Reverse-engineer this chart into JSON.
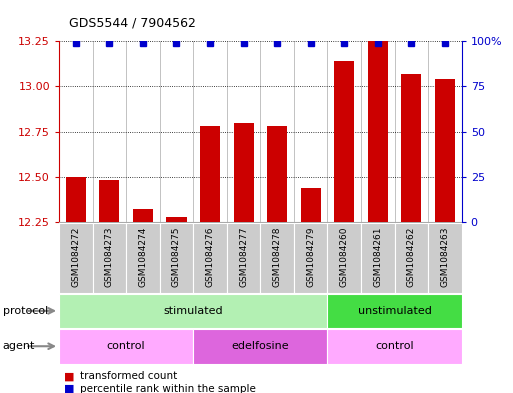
{
  "title": "GDS5544 / 7904562",
  "samples": [
    "GSM1084272",
    "GSM1084273",
    "GSM1084274",
    "GSM1084275",
    "GSM1084276",
    "GSM1084277",
    "GSM1084278",
    "GSM1084279",
    "GSM1084260",
    "GSM1084261",
    "GSM1084262",
    "GSM1084263"
  ],
  "transformed_counts": [
    12.5,
    12.48,
    12.32,
    12.28,
    12.78,
    12.8,
    12.78,
    12.44,
    13.14,
    13.25,
    13.07,
    13.04
  ],
  "percentile_ranks": [
    99,
    99,
    99,
    99,
    99,
    99,
    99,
    99,
    99,
    99,
    99,
    99
  ],
  "bar_color": "#cc0000",
  "dot_color": "#0000cc",
  "ylim_left": [
    12.25,
    13.25
  ],
  "ylim_right": [
    0,
    100
  ],
  "yticks_left": [
    12.25,
    12.5,
    12.75,
    13.0,
    13.25
  ],
  "yticks_right": [
    0,
    25,
    50,
    75,
    100
  ],
  "protocol_groups": [
    {
      "label": "stimulated",
      "start": 0,
      "end": 7,
      "color": "#b3f0b3"
    },
    {
      "label": "unstimulated",
      "start": 8,
      "end": 11,
      "color": "#44dd44"
    }
  ],
  "agent_groups": [
    {
      "label": "control",
      "start": 0,
      "end": 3,
      "color": "#ffaaff"
    },
    {
      "label": "edelfosine",
      "start": 4,
      "end": 7,
      "color": "#dd66dd"
    },
    {
      "label": "control",
      "start": 8,
      "end": 11,
      "color": "#ffaaff"
    }
  ],
  "sample_bg_color": "#cccccc",
  "background_color": "#ffffff",
  "grid_color": "#000000",
  "label_transformed": "transformed count",
  "label_percentile": "percentile rank within the sample",
  "left_axis_color": "#cc0000",
  "right_axis_color": "#0000cc",
  "arrow_color": "#888888"
}
